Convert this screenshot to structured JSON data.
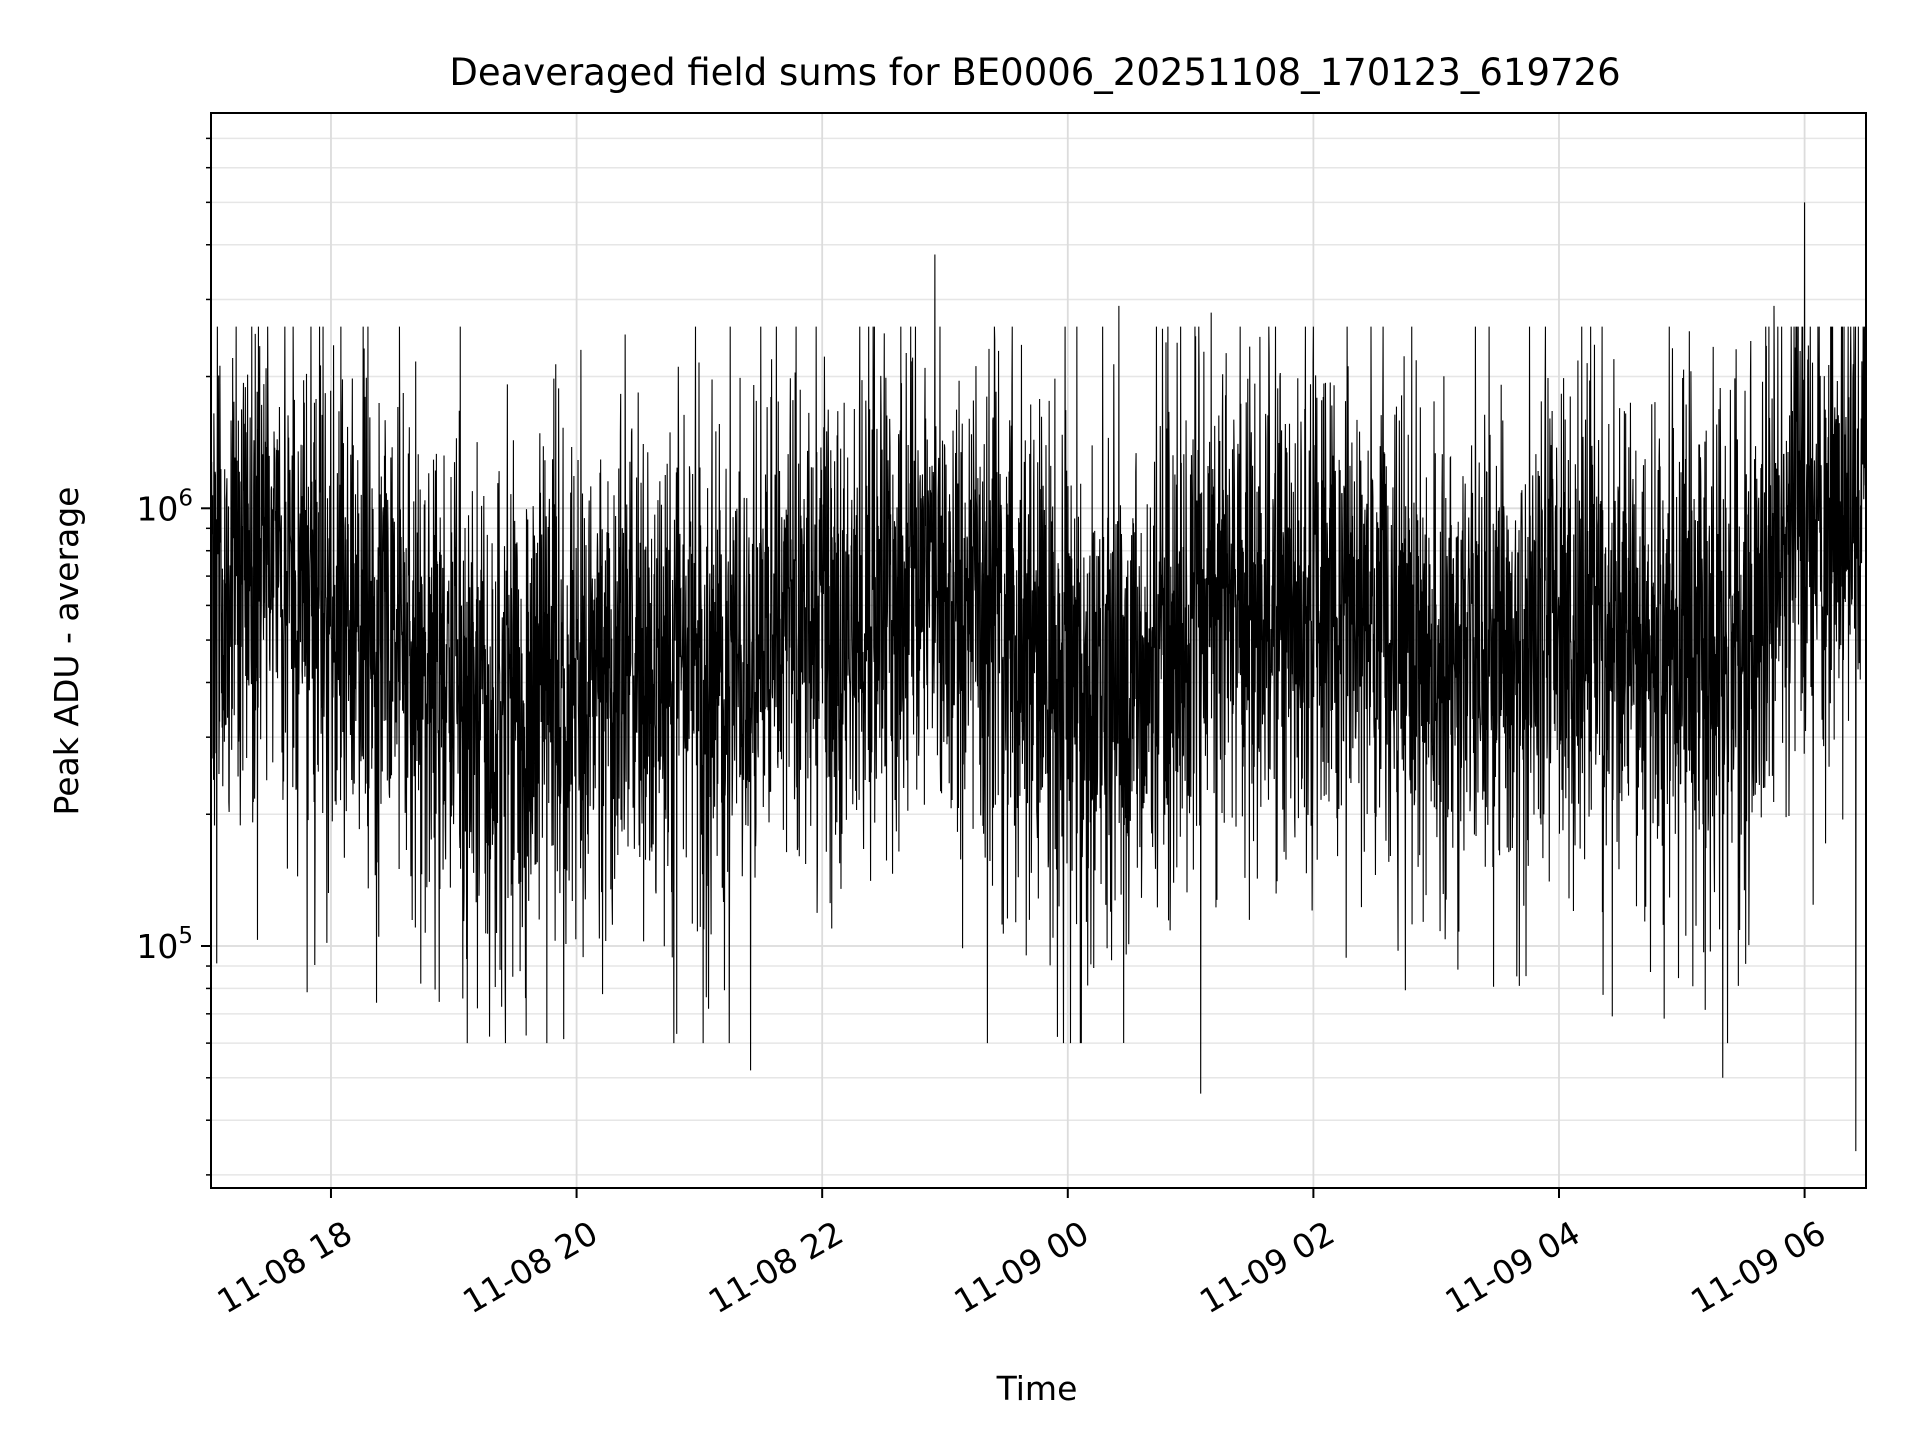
{
  "chart_data": {
    "type": "line",
    "title": "Deaveraged field sums for BE0006_20251108_170123_619726",
    "xlabel": "Time",
    "ylabel": "Peak ADU - average",
    "x_range": [
      "2025-11-08T17:01:23",
      "2025-11-09T06:30:00"
    ],
    "xlim": [
      "2025-11-08T17:01:23",
      "2025-11-09T06:30:00"
    ],
    "ylim": [
      28000,
      8000000
    ],
    "y_scale": "log",
    "grid": true,
    "x_ticks": [
      {
        "t": "2025-11-08T18:00:00",
        "label": "11-08 18"
      },
      {
        "t": "2025-11-08T20:00:00",
        "label": "11-08 20"
      },
      {
        "t": "2025-11-08T22:00:00",
        "label": "11-08 22"
      },
      {
        "t": "2025-11-09T00:00:00",
        "label": "11-09 00"
      },
      {
        "t": "2025-11-09T02:00:00",
        "label": "11-09 02"
      },
      {
        "t": "2025-11-09T04:00:00",
        "label": "11-09 04"
      },
      {
        "t": "2025-11-09T06:00:00",
        "label": "11-09 06"
      }
    ],
    "y_ticks": [
      {
        "value": 100000,
        "base": "10",
        "exp": "5"
      },
      {
        "value": 1000000,
        "base": "10",
        "exp": "6"
      }
    ],
    "series": [
      {
        "color": "#000000",
        "trend_hours": [
          0,
          0.5,
          1.0,
          1.5,
          2.0,
          2.5,
          3.0,
          3.5,
          4.0,
          4.5,
          5.0,
          5.5,
          6.0,
          6.5,
          7.0,
          7.5,
          8.0,
          8.5,
          9.0,
          9.5,
          10.0,
          10.5,
          11.0,
          11.5,
          12.0,
          12.5,
          13.0,
          13.5
        ],
        "trend_median": [
          800000,
          750000,
          600000,
          500000,
          350000,
          330000,
          400000,
          450000,
          380000,
          500000,
          480000,
          600000,
          700000,
          520000,
          400000,
          350000,
          650000,
          550000,
          600000,
          500000,
          450000,
          420000,
          600000,
          480000,
          500000,
          480000,
          1100000,
          900000
        ],
        "spread_dex": 0.3,
        "peaks": [
          {
            "t": "2025-11-08T22:55:00",
            "value": 3800000
          },
          {
            "t": "2025-11-09T06:00:00",
            "value": 5000000
          },
          {
            "t": "2025-11-08T21:15:00",
            "value": 2600000
          },
          {
            "t": "2025-11-09T00:25:00",
            "value": 2900000
          },
          {
            "t": "2025-11-09T01:10:00",
            "value": 2800000
          },
          {
            "t": "2025-11-09T05:45:00",
            "value": 2900000
          }
        ],
        "troughs": [
          {
            "t": "2025-11-08T21:25:00",
            "value": 52000
          },
          {
            "t": "2025-11-09T01:05:00",
            "value": 46000
          },
          {
            "t": "2025-11-09T06:25:00",
            "value": 34000
          },
          {
            "t": "2025-11-09T05:20:00",
            "value": 50000
          },
          {
            "t": "2025-11-08T23:55:00",
            "value": 62000
          },
          {
            "t": "2025-11-08T19:35:00",
            "value": 76000
          }
        ]
      }
    ]
  }
}
